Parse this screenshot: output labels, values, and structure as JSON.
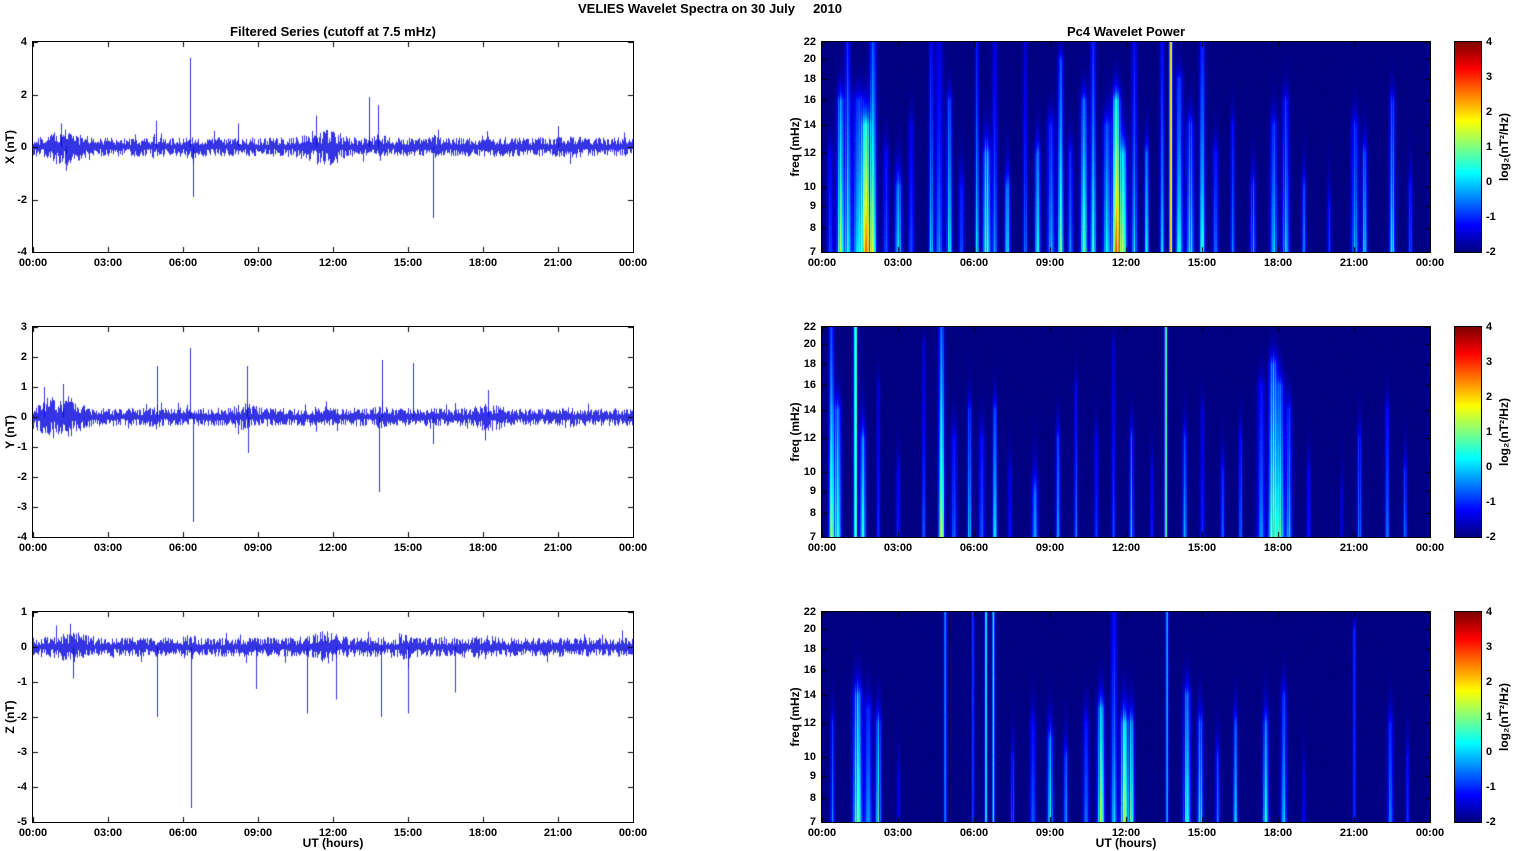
{
  "title": "VELIES Wavelet Spectra on 30 July     2010",
  "left_title": "Filtered Series (cutoff at 7.5 mHz)",
  "right_title": "Pc4 Wavelet Power",
  "series_color": "#0000dd",
  "time_axis": {
    "xlabel": "UT (hours)",
    "xlim_hours": [
      0,
      24
    ],
    "tick_hours": [
      0,
      3,
      6,
      9,
      12,
      15,
      18,
      21,
      24
    ],
    "tick_labels": [
      "00:00",
      "03:00",
      "06:00",
      "09:00",
      "12:00",
      "15:00",
      "18:00",
      "21:00",
      "00:00"
    ]
  },
  "colorbar": {
    "label": "log₂(nT²/Hz)",
    "min": -2,
    "max": 4,
    "ticks": [
      4,
      3,
      2,
      1,
      0,
      -1,
      -2
    ],
    "colormap": "jet"
  },
  "chart_data": [
    {
      "type": "line",
      "component": "X",
      "ylabel": "X (nT)",
      "ylim": [
        -4,
        4
      ],
      "yticks": [
        4,
        2,
        0,
        -2,
        -4
      ],
      "noise_amp": 0.26,
      "bursts": [
        [
          1.2,
          2.0,
          0.5
        ],
        [
          4.9,
          1.4,
          0.2
        ],
        [
          6.3,
          1.3,
          0.2
        ],
        [
          11.4,
          1.8,
          0.5
        ],
        [
          12.0,
          1.5,
          0.3
        ],
        [
          13.8,
          1.5,
          0.2
        ],
        [
          16.0,
          1.3,
          0.2
        ],
        [
          18.4,
          1.3,
          0.3
        ],
        [
          21.5,
          1.2,
          0.3
        ]
      ],
      "spikes": [
        [
          1.1,
          0.9
        ],
        [
          1.3,
          -0.9
        ],
        [
          4.9,
          1.0
        ],
        [
          6.28,
          3.4
        ],
        [
          6.4,
          -1.9
        ],
        [
          8.2,
          0.9
        ],
        [
          11.3,
          1.2
        ],
        [
          13.45,
          1.9
        ],
        [
          13.8,
          1.6
        ],
        [
          16.0,
          -2.7
        ],
        [
          21.0,
          0.8
        ]
      ]
    },
    {
      "type": "heatmap",
      "component": "X",
      "ylabel": "freq (mHz)",
      "yscale": "log",
      "ylim": [
        7,
        22
      ],
      "yticks": [
        22,
        20,
        18,
        16,
        14,
        12,
        10,
        9,
        8,
        7
      ],
      "clim": [
        -2,
        4
      ],
      "events_format": [
        "t_hours",
        "peak_log2_power",
        "fmax_mHz",
        "width_hours",
        "flat_profile"
      ],
      "events": [
        [
          0.3,
          3,
          12,
          0.08,
          0
        ],
        [
          0.7,
          4,
          16,
          0.1,
          0
        ],
        [
          1.0,
          3.5,
          22,
          0.08,
          0
        ],
        [
          1.4,
          5,
          16,
          0.15,
          0
        ],
        [
          1.7,
          5.5,
          14,
          0.12,
          0
        ],
        [
          2.0,
          4,
          22,
          0.1,
          0
        ],
        [
          2.5,
          3,
          12,
          0.08,
          0
        ],
        [
          3.0,
          2.5,
          10,
          0.1,
          0
        ],
        [
          3.5,
          3,
          14,
          0.08,
          0
        ],
        [
          4.3,
          3.5,
          22,
          0.06,
          0
        ],
        [
          4.6,
          4,
          22,
          0.1,
          0
        ],
        [
          5.0,
          3,
          16,
          0.08,
          0
        ],
        [
          5.5,
          2.5,
          10,
          0.08,
          0
        ],
        [
          6.1,
          3,
          22,
          0.05,
          0
        ],
        [
          6.5,
          5,
          12,
          0.1,
          0
        ],
        [
          6.8,
          4,
          22,
          0.07,
          0
        ],
        [
          7.3,
          2.5,
          10,
          0.08,
          0
        ],
        [
          8.0,
          3,
          22,
          0.06,
          0
        ],
        [
          8.5,
          3,
          12,
          0.08,
          0
        ],
        [
          9.0,
          4,
          14,
          0.1,
          0
        ],
        [
          9.4,
          3.5,
          20,
          0.08,
          0
        ],
        [
          9.8,
          3,
          12,
          0.08,
          0
        ],
        [
          10.3,
          4,
          16,
          0.1,
          0
        ],
        [
          10.7,
          3.5,
          22,
          0.08,
          0
        ],
        [
          11.2,
          4.5,
          14,
          0.1,
          0
        ],
        [
          11.6,
          5.5,
          16,
          0.12,
          0
        ],
        [
          11.9,
          5,
          12,
          0.1,
          0
        ],
        [
          12.3,
          4,
          22,
          0.08,
          0
        ],
        [
          12.8,
          3,
          12,
          0.06,
          0
        ],
        [
          13.4,
          4,
          22,
          0.06,
          0
        ],
        [
          13.75,
          5,
          22,
          0.04,
          1
        ],
        [
          14.1,
          4.5,
          18,
          0.1,
          0
        ],
        [
          14.5,
          4,
          14,
          0.1,
          0
        ],
        [
          15.0,
          3.5,
          22,
          0.08,
          0
        ],
        [
          15.5,
          3,
          12,
          0.08,
          0
        ],
        [
          16.2,
          2.5,
          14,
          0.06,
          0
        ],
        [
          17.0,
          2,
          10,
          0.08,
          0
        ],
        [
          17.8,
          3,
          14,
          0.1,
          0
        ],
        [
          18.3,
          3,
          16,
          0.1,
          0
        ],
        [
          19.0,
          2,
          10,
          0.06,
          0
        ],
        [
          20.0,
          1.5,
          9,
          0.06,
          0
        ],
        [
          21.0,
          3,
          14,
          0.1,
          0
        ],
        [
          21.4,
          2.5,
          12,
          0.08,
          0
        ],
        [
          22.5,
          3,
          16,
          0.08,
          0
        ],
        [
          23.2,
          2,
          10,
          0.06,
          0
        ]
      ]
    },
    {
      "type": "line",
      "component": "Y",
      "ylabel": "Y (nT)",
      "ylim": [
        -4,
        3
      ],
      "yticks": [
        3,
        2,
        1,
        0,
        -1,
        -2,
        -3,
        -4
      ],
      "noise_amp": 0.22,
      "bursts": [
        [
          0.8,
          2.2,
          0.5
        ],
        [
          1.5,
          1.7,
          0.4
        ],
        [
          4.9,
          1.4,
          0.15
        ],
        [
          8.5,
          1.5,
          0.3
        ],
        [
          13.9,
          1.4,
          0.15
        ],
        [
          18.3,
          1.6,
          0.4
        ],
        [
          21.3,
          1.2,
          0.3
        ]
      ],
      "spikes": [
        [
          0.45,
          1.0
        ],
        [
          1.2,
          1.1
        ],
        [
          4.95,
          1.7
        ],
        [
          6.28,
          2.3
        ],
        [
          6.4,
          -3.5
        ],
        [
          8.55,
          1.7
        ],
        [
          8.6,
          -1.2
        ],
        [
          13.85,
          -2.5
        ],
        [
          13.95,
          1.9
        ],
        [
          15.2,
          1.8
        ],
        [
          16.0,
          -0.9
        ],
        [
          18.2,
          0.9
        ]
      ]
    },
    {
      "type": "heatmap",
      "component": "Y",
      "ylabel": "freq (mHz)",
      "yscale": "log",
      "ylim": [
        7,
        22
      ],
      "yticks": [
        22,
        20,
        18,
        16,
        14,
        12,
        10,
        9,
        8,
        7
      ],
      "clim": [
        -2,
        4
      ],
      "events_format": [
        "t_hours",
        "peak_log2_power",
        "fmax_mHz",
        "width_hours",
        "flat_profile"
      ],
      "events": [
        [
          0.35,
          4,
          22,
          0.07,
          0
        ],
        [
          0.6,
          3.5,
          14,
          0.1,
          0
        ],
        [
          1.3,
          4.5,
          22,
          0.05,
          1
        ],
        [
          1.6,
          3,
          12,
          0.08,
          0
        ],
        [
          2.2,
          2.5,
          16,
          0.05,
          0
        ],
        [
          3.0,
          2,
          10,
          0.06,
          0
        ],
        [
          4.0,
          2.5,
          20,
          0.05,
          0
        ],
        [
          4.7,
          4.5,
          22,
          0.08,
          0
        ],
        [
          5.2,
          3,
          12,
          0.08,
          0
        ],
        [
          5.8,
          2.5,
          14,
          0.06,
          0
        ],
        [
          6.3,
          3,
          12,
          0.08,
          0
        ],
        [
          6.8,
          3,
          14,
          0.06,
          0
        ],
        [
          7.4,
          2,
          10,
          0.06,
          0
        ],
        [
          8.4,
          3.5,
          9,
          0.08,
          0
        ],
        [
          9.3,
          2.5,
          12,
          0.06,
          0
        ],
        [
          10.0,
          2,
          16,
          0.05,
          0
        ],
        [
          10.8,
          2.5,
          12,
          0.06,
          0
        ],
        [
          11.5,
          2,
          20,
          0.05,
          0
        ],
        [
          12.2,
          2.5,
          12,
          0.06,
          0
        ],
        [
          13.0,
          2,
          10,
          0.05,
          0
        ],
        [
          13.55,
          5,
          22,
          0.04,
          1
        ],
        [
          14.3,
          2.5,
          12,
          0.06,
          0
        ],
        [
          15.0,
          2.5,
          14,
          0.06,
          0
        ],
        [
          15.8,
          2,
          10,
          0.06,
          0
        ],
        [
          16.5,
          2,
          12,
          0.05,
          0
        ],
        [
          17.3,
          3.5,
          16,
          0.1,
          0
        ],
        [
          17.8,
          4.5,
          18,
          0.12,
          0
        ],
        [
          18.1,
          5,
          16,
          0.1,
          0
        ],
        [
          18.4,
          4,
          14,
          0.08,
          0
        ],
        [
          19.2,
          2,
          10,
          0.06,
          0
        ],
        [
          20.5,
          1.5,
          9,
          0.05,
          0
        ],
        [
          21.2,
          2.5,
          12,
          0.06,
          0
        ],
        [
          22.3,
          2.5,
          14,
          0.06,
          0
        ],
        [
          23.0,
          2,
          10,
          0.05,
          0
        ]
      ]
    },
    {
      "type": "line",
      "component": "Z",
      "ylabel": "Z (nT)",
      "ylim": [
        -5,
        1
      ],
      "yticks": [
        1,
        0,
        -1,
        -2,
        -3,
        -4,
        -5
      ],
      "noise_amp": 0.2,
      "bursts": [
        [
          1.5,
          1.6,
          0.5
        ],
        [
          6.3,
          1.3,
          0.2
        ],
        [
          11.5,
          1.5,
          0.4
        ],
        [
          12.0,
          1.4,
          0.3
        ],
        [
          14.8,
          1.4,
          0.3
        ],
        [
          18.0,
          1.3,
          0.3
        ]
      ],
      "spikes": [
        [
          1.6,
          -0.9
        ],
        [
          4.95,
          -2.0
        ],
        [
          6.3,
          -4.6
        ],
        [
          8.9,
          -1.2
        ],
        [
          10.95,
          -1.9
        ],
        [
          12.1,
          -1.5
        ],
        [
          13.9,
          -2.0
        ],
        [
          15.0,
          -1.9
        ],
        [
          16.9,
          -1.3
        ]
      ]
    },
    {
      "type": "heatmap",
      "component": "Z",
      "ylabel": "freq (mHz)",
      "yscale": "log",
      "ylim": [
        7,
        22
      ],
      "yticks": [
        22,
        20,
        18,
        16,
        14,
        12,
        10,
        9,
        8,
        7
      ],
      "clim": [
        -2,
        4
      ],
      "events_format": [
        "t_hours",
        "peak_log2_power",
        "fmax_mHz",
        "width_hours",
        "flat_profile"
      ],
      "events": [
        [
          0.4,
          2.5,
          12,
          0.06,
          0
        ],
        [
          1.4,
          4.5,
          14,
          0.12,
          0
        ],
        [
          1.8,
          4,
          13,
          0.1,
          0
        ],
        [
          2.2,
          3,
          12,
          0.08,
          0
        ],
        [
          3.0,
          1.5,
          9,
          0.05,
          0
        ],
        [
          4.85,
          3.5,
          22,
          0.04,
          1
        ],
        [
          5.95,
          3,
          22,
          0.035,
          1
        ],
        [
          6.45,
          3,
          22,
          0.035,
          1
        ],
        [
          6.75,
          3,
          22,
          0.035,
          1
        ],
        [
          7.5,
          2,
          10,
          0.05,
          0
        ],
        [
          8.3,
          3,
          12,
          0.08,
          0
        ],
        [
          9.0,
          3.5,
          11,
          0.08,
          0
        ],
        [
          9.6,
          2.5,
          10,
          0.06,
          0
        ],
        [
          10.4,
          3.5,
          12,
          0.08,
          0
        ],
        [
          11.0,
          4,
          13,
          0.1,
          0
        ],
        [
          11.5,
          5,
          22,
          0.08,
          0
        ],
        [
          11.9,
          4.5,
          12,
          0.1,
          0
        ],
        [
          12.2,
          4,
          12,
          0.08,
          0
        ],
        [
          13.6,
          4.5,
          22,
          0.04,
          1
        ],
        [
          14.4,
          4,
          14,
          0.1,
          0
        ],
        [
          14.9,
          4,
          12,
          0.08,
          0
        ],
        [
          15.6,
          3,
          10,
          0.06,
          0
        ],
        [
          16.3,
          2.5,
          12,
          0.06,
          0
        ],
        [
          17.5,
          3,
          12,
          0.08,
          0
        ],
        [
          18.2,
          3,
          14,
          0.08,
          0
        ],
        [
          19.0,
          2,
          9,
          0.05,
          0
        ],
        [
          21.0,
          2.5,
          20,
          0.04,
          1
        ],
        [
          22.4,
          3,
          12,
          0.08,
          0
        ],
        [
          23.1,
          2,
          10,
          0.05,
          0
        ]
      ]
    }
  ]
}
